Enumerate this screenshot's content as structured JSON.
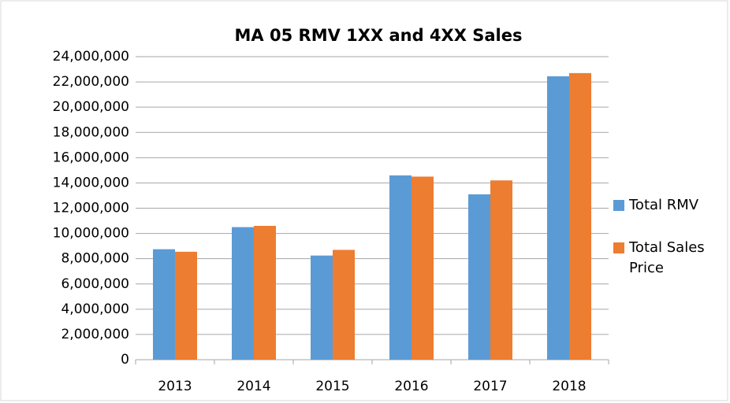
{
  "chart_data": {
    "type": "bar",
    "title": "MA 05 RMV 1XX and 4XX Sales",
    "categories": [
      "2013",
      "2014",
      "2015",
      "2016",
      "2017",
      "2018"
    ],
    "series": [
      {
        "name": "Total RMV",
        "color": "#5b9bd5",
        "values": [
          8750000,
          10500000,
          8250000,
          14600000,
          13100000,
          22450000
        ]
      },
      {
        "name": "Total Sales Price",
        "color": "#ed7d31",
        "values": [
          8550000,
          10600000,
          8700000,
          14500000,
          14200000,
          22700000
        ]
      }
    ],
    "ylim": [
      0,
      24000000
    ],
    "yticks": [
      0,
      {
        "value": 2000000,
        "label": "2,000,000"
      },
      {
        "value": 4000000,
        "label": "4,000,000"
      },
      {
        "value": 6000000,
        "label": "6,000,000"
      },
      {
        "value": 8000000,
        "label": "8,000,000"
      },
      {
        "value": 10000000,
        "label": "10,000,000"
      },
      {
        "value": 12000000,
        "label": "12,000,000"
      },
      {
        "value": 14000000,
        "label": "14,000,000"
      },
      {
        "value": 16000000,
        "label": "16,000,000"
      },
      {
        "value": 18000000,
        "label": "18,000,000"
      },
      {
        "value": 20000000,
        "label": "20,000,000"
      },
      {
        "value": 22000000,
        "label": "22,000,000"
      },
      {
        "value": 24000000,
        "label": "24,000,000"
      }
    ],
    "grid": true,
    "legend": "right"
  }
}
